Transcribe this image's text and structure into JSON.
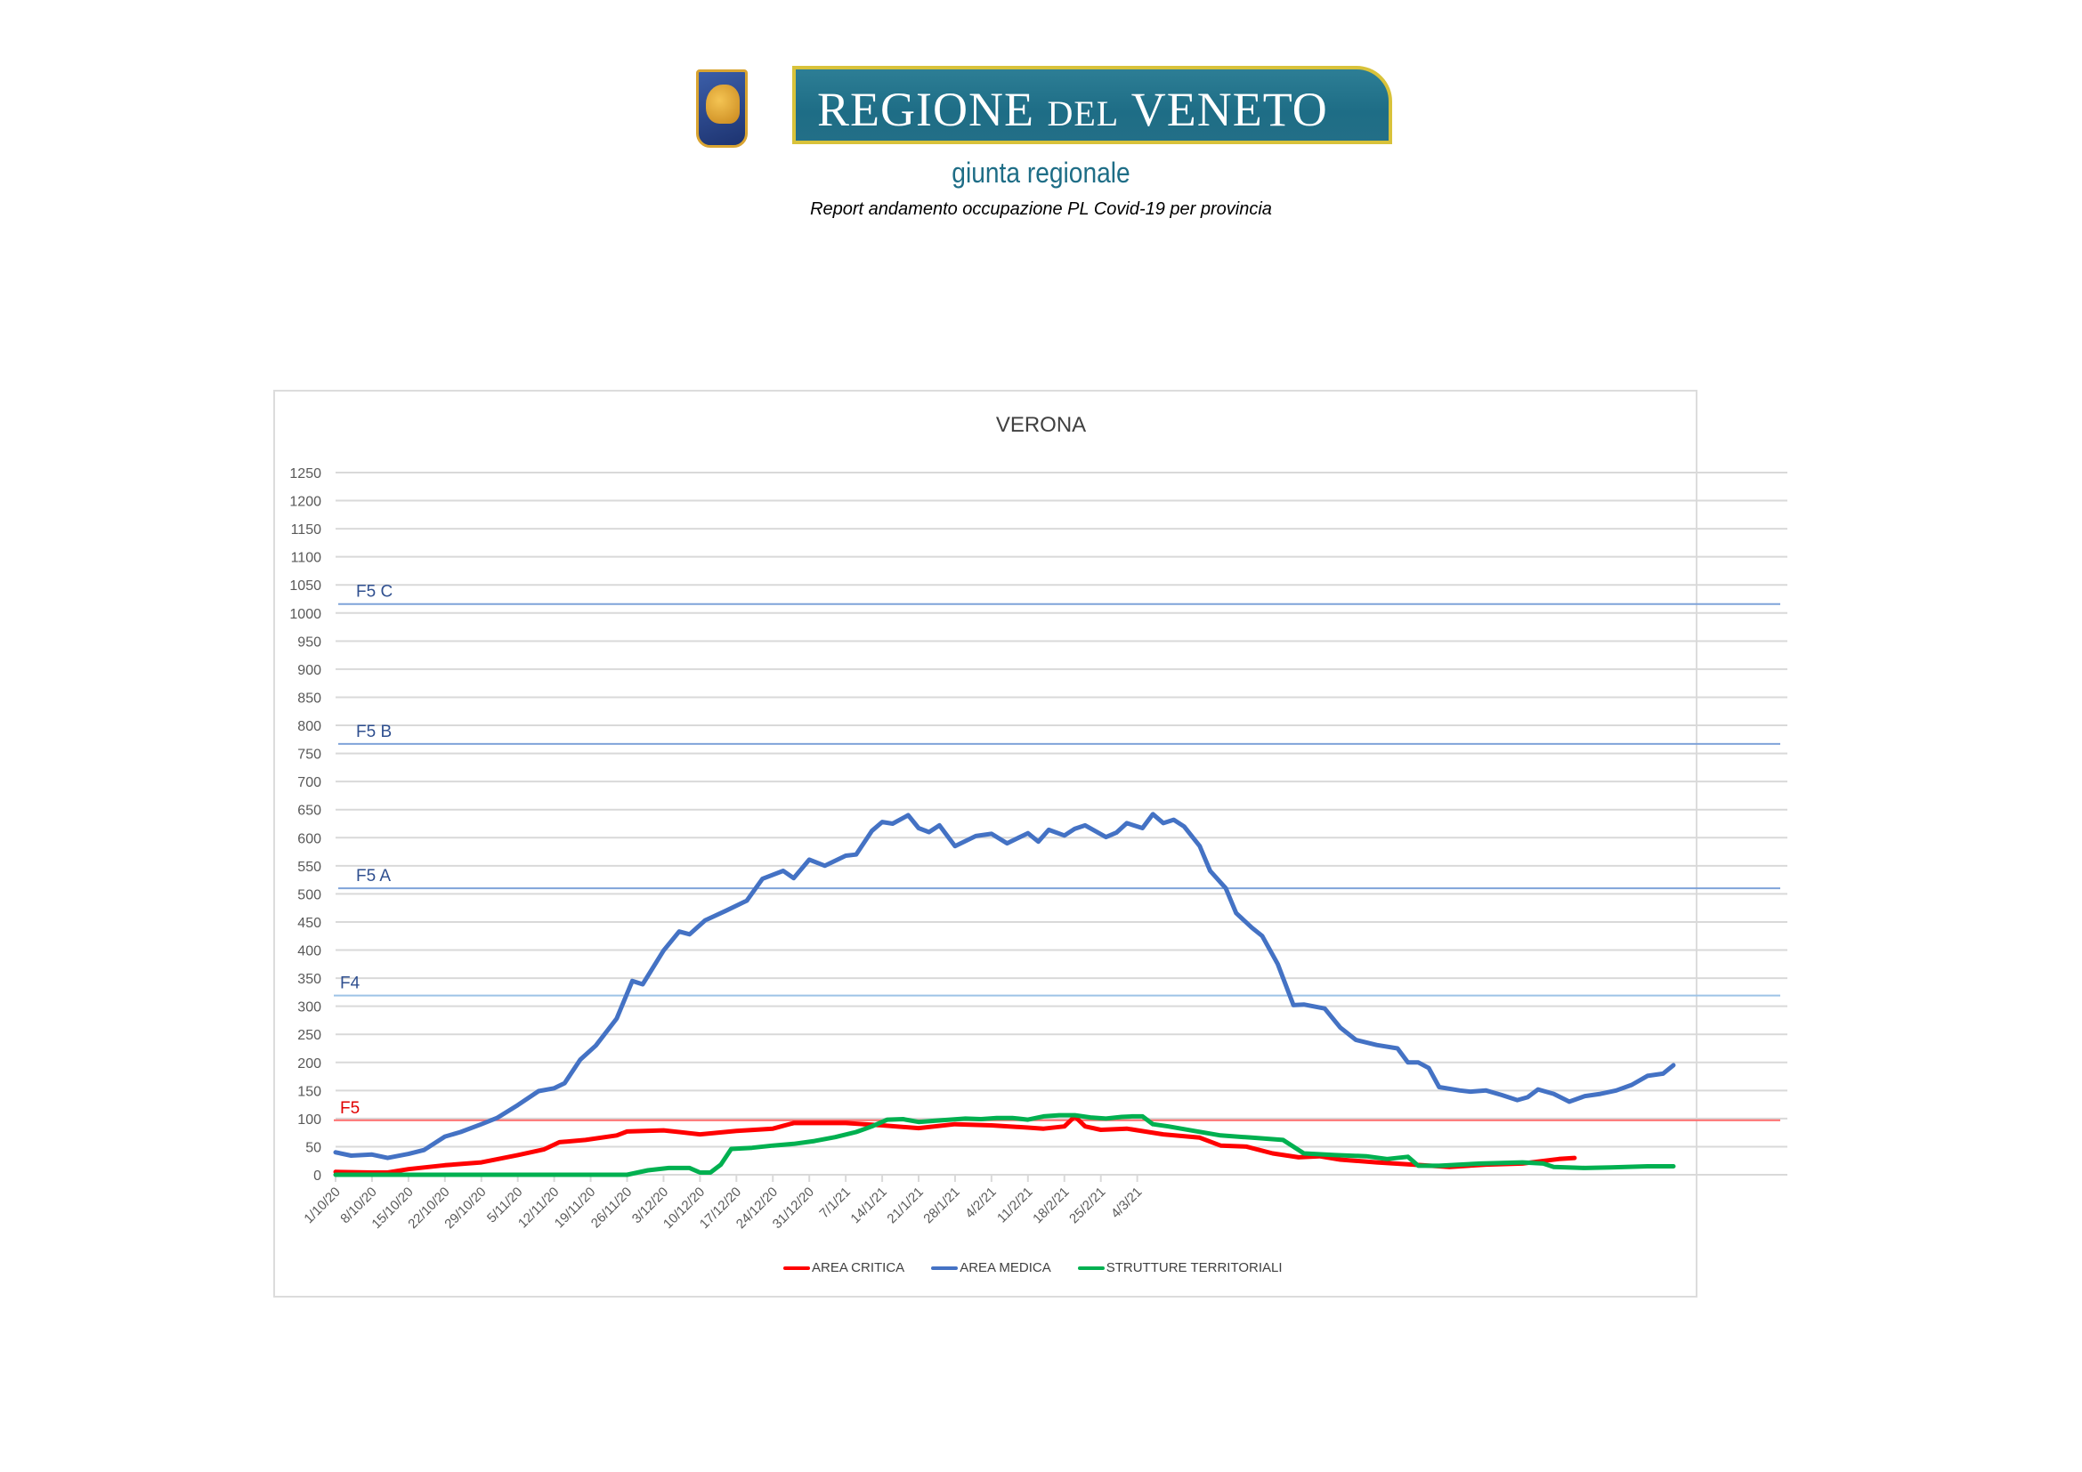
{
  "header": {
    "logo_text_main": "REGIONE",
    "logo_text_del": "DEL",
    "logo_text_region": "VENETO",
    "giunta": "giunta regionale",
    "subtitle": "Report andamento occupazione PL Covid-19 per provincia"
  },
  "colors": {
    "area_critica": "#ff0000",
    "area_medica": "#4472c4",
    "strutture_territoriali": "#00b050",
    "threshold_blue": "#7fa3d9",
    "threshold_red": "#ff6b6b",
    "grid": "#d9d9d9",
    "axis_text": "#595959"
  },
  "chart_data": {
    "type": "line",
    "title": "VERONA",
    "xlabel": "",
    "ylabel": "",
    "ylim": [
      0,
      1250
    ],
    "yticks": [
      0,
      50,
      100,
      150,
      200,
      250,
      300,
      350,
      400,
      450,
      500,
      550,
      600,
      650,
      700,
      750,
      800,
      850,
      900,
      950,
      1000,
      1050,
      1100,
      1150,
      1200,
      1250
    ],
    "grid": true,
    "legend_position": "bottom",
    "x_start": "1/10/20",
    "x_end": "8/3/21",
    "num_days": 159,
    "x_tick_labels": [
      "1/10/20",
      "8/10/20",
      "15/10/20",
      "22/10/20",
      "29/10/20",
      "5/11/20",
      "12/11/20",
      "19/11/20",
      "26/11/20",
      "3/12/20",
      "10/12/20",
      "17/12/20",
      "24/12/20",
      "31/12/20",
      "7/1/21",
      "14/1/21",
      "21/1/21",
      "28/1/21",
      "4/2/21",
      "11/2/21",
      "18/2/21",
      "25/2/21",
      "4/3/21"
    ],
    "thresholds": [
      {
        "label": "F5 C",
        "value": 1016,
        "color": "#7fa3d9",
        "label_color": "#2f4f8f"
      },
      {
        "label": "F5 B",
        "value": 767,
        "color": "#7fa3d9",
        "label_color": "#2f4f8f"
      },
      {
        "label": "F5 A",
        "value": 510,
        "color": "#7fa3d9",
        "label_color": "#2f4f8f"
      },
      {
        "label": "F4",
        "value": 319,
        "color": "#9dc3e6",
        "label_color": "#2f4f8f"
      },
      {
        "label": "F5",
        "value": 97,
        "color": "#ff6b6b",
        "label_color": "#e00000"
      }
    ],
    "series": [
      {
        "name": "AREA CRITICA",
        "color": "#ff0000",
        "points_day_value": [
          [
            0,
            5
          ],
          [
            7,
            4
          ],
          [
            10,
            4
          ],
          [
            14,
            10
          ],
          [
            21,
            17
          ],
          [
            28,
            22
          ],
          [
            35,
            35
          ],
          [
            40,
            45
          ],
          [
            43,
            58
          ],
          [
            48,
            62
          ],
          [
            54,
            70
          ],
          [
            56,
            77
          ],
          [
            63,
            79
          ],
          [
            70,
            72
          ],
          [
            77,
            78
          ],
          [
            84,
            82
          ],
          [
            88,
            92
          ],
          [
            98,
            92
          ],
          [
            105,
            88
          ],
          [
            112,
            83
          ],
          [
            119,
            90
          ],
          [
            126,
            88
          ],
          [
            133,
            84
          ],
          [
            136,
            82
          ],
          [
            140,
            86
          ],
          [
            142,
            104
          ],
          [
            144,
            86
          ],
          [
            147,
            80
          ],
          [
            152,
            82
          ],
          [
            159,
            72
          ],
          [
            166,
            66
          ],
          [
            170,
            52
          ],
          [
            175,
            50
          ],
          [
            180,
            38
          ],
          [
            185,
            31
          ],
          [
            189,
            33
          ],
          [
            193,
            27
          ],
          [
            200,
            22
          ],
          [
            207,
            18
          ],
          [
            214,
            14
          ],
          [
            221,
            18
          ],
          [
            228,
            20
          ],
          [
            235,
            28
          ],
          [
            238,
            30
          ]
        ]
      },
      {
        "name": "AREA MEDICA",
        "color": "#4472c4",
        "points_day_value": [
          [
            0,
            40
          ],
          [
            3,
            34
          ],
          [
            7,
            36
          ],
          [
            10,
            30
          ],
          [
            14,
            37
          ],
          [
            17,
            44
          ],
          [
            21,
            68
          ],
          [
            24,
            76
          ],
          [
            28,
            90
          ],
          [
            31,
            101
          ],
          [
            35,
            124
          ],
          [
            39,
            149
          ],
          [
            42,
            154
          ],
          [
            44,
            163
          ],
          [
            47,
            205
          ],
          [
            50,
            230
          ],
          [
            54,
            278
          ],
          [
            57,
            345
          ],
          [
            59,
            339
          ],
          [
            63,
            399
          ],
          [
            66,
            433
          ],
          [
            68,
            428
          ],
          [
            71,
            453
          ],
          [
            75,
            470
          ],
          [
            79,
            488
          ],
          [
            82,
            527
          ],
          [
            86,
            541
          ],
          [
            88,
            528
          ],
          [
            91,
            561
          ],
          [
            94,
            550
          ],
          [
            98,
            568
          ],
          [
            100,
            570
          ],
          [
            103,
            612
          ],
          [
            105,
            628
          ],
          [
            107,
            625
          ],
          [
            110,
            640
          ],
          [
            112,
            617
          ],
          [
            114,
            610
          ],
          [
            116,
            622
          ],
          [
            119,
            585
          ],
          [
            123,
            603
          ],
          [
            126,
            607
          ],
          [
            129,
            590
          ],
          [
            133,
            608
          ],
          [
            135,
            593
          ],
          [
            137,
            614
          ],
          [
            140,
            604
          ],
          [
            142,
            616
          ],
          [
            144,
            622
          ],
          [
            148,
            601
          ],
          [
            150,
            609
          ],
          [
            152,
            626
          ],
          [
            155,
            617
          ],
          [
            157,
            642
          ],
          [
            159,
            626
          ],
          [
            161,
            632
          ],
          [
            163,
            620
          ],
          [
            166,
            585
          ],
          [
            168,
            541
          ],
          [
            171,
            510
          ],
          [
            173,
            466
          ],
          [
            176,
            440
          ],
          [
            178,
            425
          ],
          [
            181,
            375
          ],
          [
            184,
            302
          ],
          [
            186,
            303
          ],
          [
            190,
            296
          ],
          [
            193,
            262
          ],
          [
            196,
            240
          ],
          [
            200,
            231
          ],
          [
            204,
            225
          ],
          [
            206,
            200
          ],
          [
            208,
            200
          ],
          [
            210,
            190
          ],
          [
            212,
            156
          ],
          [
            216,
            150
          ],
          [
            218,
            148
          ],
          [
            221,
            150
          ],
          [
            224,
            142
          ],
          [
            227,
            133
          ],
          [
            229,
            138
          ],
          [
            231,
            152
          ],
          [
            234,
            144
          ],
          [
            237,
            130
          ],
          [
            240,
            140
          ],
          [
            243,
            144
          ],
          [
            246,
            150
          ],
          [
            249,
            160
          ],
          [
            252,
            176
          ],
          [
            255,
            180
          ],
          [
            257,
            195
          ]
        ]
      },
      {
        "name": "STRUTTURE TERRITORIALI",
        "color": "#00b050",
        "points_day_value": [
          [
            0,
            0
          ],
          [
            56,
            0
          ],
          [
            60,
            8
          ],
          [
            64,
            12
          ],
          [
            68,
            12
          ],
          [
            70,
            4
          ],
          [
            72,
            4
          ],
          [
            74,
            18
          ],
          [
            76,
            46
          ],
          [
            80,
            48
          ],
          [
            84,
            52
          ],
          [
            88,
            55
          ],
          [
            92,
            60
          ],
          [
            96,
            67
          ],
          [
            100,
            76
          ],
          [
            103,
            86
          ],
          [
            106,
            98
          ],
          [
            109,
            99
          ],
          [
            112,
            94
          ],
          [
            115,
            96
          ],
          [
            118,
            98
          ],
          [
            121,
            100
          ],
          [
            124,
            99
          ],
          [
            127,
            101
          ],
          [
            130,
            101
          ],
          [
            133,
            98
          ],
          [
            136,
            104
          ],
          [
            139,
            106
          ],
          [
            142,
            106
          ],
          [
            145,
            102
          ],
          [
            148,
            100
          ],
          [
            151,
            103
          ],
          [
            153,
            104
          ],
          [
            155,
            104
          ],
          [
            157,
            90
          ],
          [
            160,
            86
          ],
          [
            165,
            78
          ],
          [
            170,
            70
          ],
          [
            176,
            66
          ],
          [
            182,
            62
          ],
          [
            186,
            38
          ],
          [
            192,
            35
          ],
          [
            198,
            33
          ],
          [
            202,
            28
          ],
          [
            206,
            32
          ],
          [
            208,
            16
          ],
          [
            212,
            16
          ],
          [
            216,
            18
          ],
          [
            220,
            20
          ],
          [
            224,
            21
          ],
          [
            228,
            22
          ],
          [
            232,
            20
          ],
          [
            234,
            14
          ],
          [
            240,
            12
          ],
          [
            245,
            13
          ],
          [
            252,
            15
          ],
          [
            257,
            15
          ]
        ]
      }
    ],
    "series_note": "x is day index; legend order: AREA CRITICA, AREA MEDICA, STRUTTURE TERRITORIALI"
  },
  "legend": {
    "items": [
      {
        "label": "AREA CRITICA",
        "color": "#ff0000"
      },
      {
        "label": "AREA MEDICA",
        "color": "#4472c4"
      },
      {
        "label": "STRUTTURE TERRITORIALI",
        "color": "#00b050"
      }
    ]
  }
}
